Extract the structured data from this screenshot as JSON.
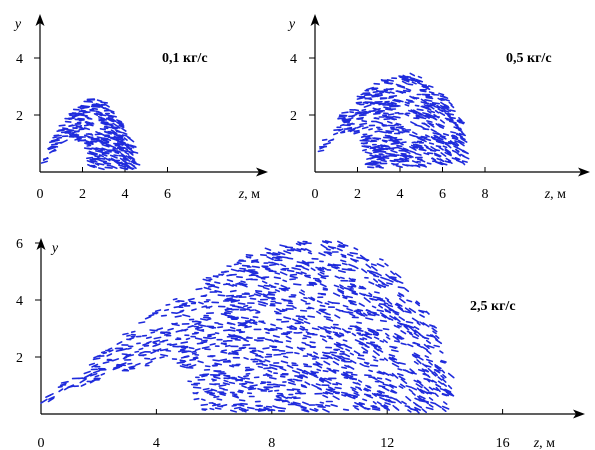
{
  "chart_data": [
    {
      "type": "scatter",
      "title": "0,1 кг/с",
      "xlabel": "z",
      "xunit": ", м",
      "ylabel": "y",
      "xlim": [
        0,
        10
      ],
      "ylim": [
        0,
        5
      ],
      "xticks": [
        "0",
        "2",
        "4",
        "6"
      ],
      "yticks": [
        "2",
        "4"
      ],
      "marker_color": "#1f2bdc",
      "particle_count": 340,
      "envelope": [
        [
          0.2,
          0.5
        ],
        [
          0.5,
          1.0
        ],
        [
          1.0,
          1.6
        ],
        [
          1.5,
          2.05
        ],
        [
          2.0,
          2.4
        ],
        [
          2.5,
          2.6
        ],
        [
          3.0,
          2.45
        ],
        [
          3.5,
          2.1
        ],
        [
          4.0,
          1.5
        ],
        [
          4.4,
          1.0
        ],
        [
          4.6,
          0.5
        ],
        [
          4.5,
          0.1
        ],
        [
          2.4,
          0.1
        ],
        [
          2.2,
          1.0
        ],
        [
          1.5,
          1.2
        ],
        [
          1.0,
          0.95
        ],
        [
          0.5,
          0.6
        ],
        [
          0.2,
          0.3
        ]
      ]
    },
    {
      "type": "scatter",
      "title": "0,5 кг/с",
      "xlabel": "z",
      "xunit": ", м",
      "ylabel": "y",
      "xlim": [
        0,
        10
      ],
      "ylim": [
        0,
        5
      ],
      "xticks": [
        "0",
        "2",
        "4",
        "6",
        "8"
      ],
      "yticks": [
        "2",
        "4"
      ],
      "marker_color": "#1f2bdc",
      "particle_count": 580,
      "envelope": [
        [
          0.1,
          0.6
        ],
        [
          0.5,
          1.2
        ],
        [
          1.0,
          1.7
        ],
        [
          1.5,
          2.2
        ],
        [
          2.0,
          2.6
        ],
        [
          2.5,
          2.9
        ],
        [
          3.0,
          3.15
        ],
        [
          3.5,
          3.3
        ],
        [
          4.0,
          3.4
        ],
        [
          4.5,
          3.45
        ],
        [
          5.0,
          3.35
        ],
        [
          5.5,
          3.1
        ],
        [
          6.0,
          2.8
        ],
        [
          6.5,
          2.3
        ],
        [
          6.9,
          1.8
        ],
        [
          7.1,
          1.2
        ],
        [
          7.1,
          0.3
        ],
        [
          2.5,
          0.1
        ],
        [
          2.2,
          1.3
        ],
        [
          1.5,
          1.5
        ],
        [
          1.0,
          1.2
        ],
        [
          0.5,
          0.8
        ],
        [
          0.1,
          0.4
        ]
      ]
    },
    {
      "type": "scatter",
      "title": "2,5 кг/с",
      "xlabel": "z",
      "xunit": ", м",
      "ylabel": "y",
      "xlim": [
        0,
        20
      ],
      "ylim": [
        0,
        6.6
      ],
      "xticks": [
        "0",
        "4",
        "8",
        "12",
        "16"
      ],
      "yticks": [
        "2",
        "4",
        "6"
      ],
      "marker_color": "#1f2bdc",
      "particle_count": 1500,
      "envelope": [
        [
          0.1,
          0.5
        ],
        [
          1.0,
          1.3
        ],
        [
          2.0,
          2.1
        ],
        [
          3.0,
          2.9
        ],
        [
          4.0,
          3.6
        ],
        [
          5.0,
          4.3
        ],
        [
          6.0,
          4.9
        ],
        [
          7.0,
          5.5
        ],
        [
          8.0,
          5.9
        ],
        [
          9.0,
          6.1
        ],
        [
          10.0,
          6.1
        ],
        [
          11.0,
          5.9
        ],
        [
          12.0,
          5.3
        ],
        [
          12.8,
          4.6
        ],
        [
          13.3,
          3.8
        ],
        [
          13.8,
          2.8
        ],
        [
          14.2,
          1.6
        ],
        [
          14.3,
          0.6
        ],
        [
          14.0,
          0.1
        ],
        [
          5.5,
          0.1
        ],
        [
          5.0,
          1.6
        ],
        [
          4.5,
          1.9
        ],
        [
          3.5,
          1.6
        ],
        [
          2.5,
          1.4
        ],
        [
          1.5,
          1.0
        ],
        [
          0.5,
          0.6
        ],
        [
          0.1,
          0.3
        ]
      ]
    }
  ]
}
